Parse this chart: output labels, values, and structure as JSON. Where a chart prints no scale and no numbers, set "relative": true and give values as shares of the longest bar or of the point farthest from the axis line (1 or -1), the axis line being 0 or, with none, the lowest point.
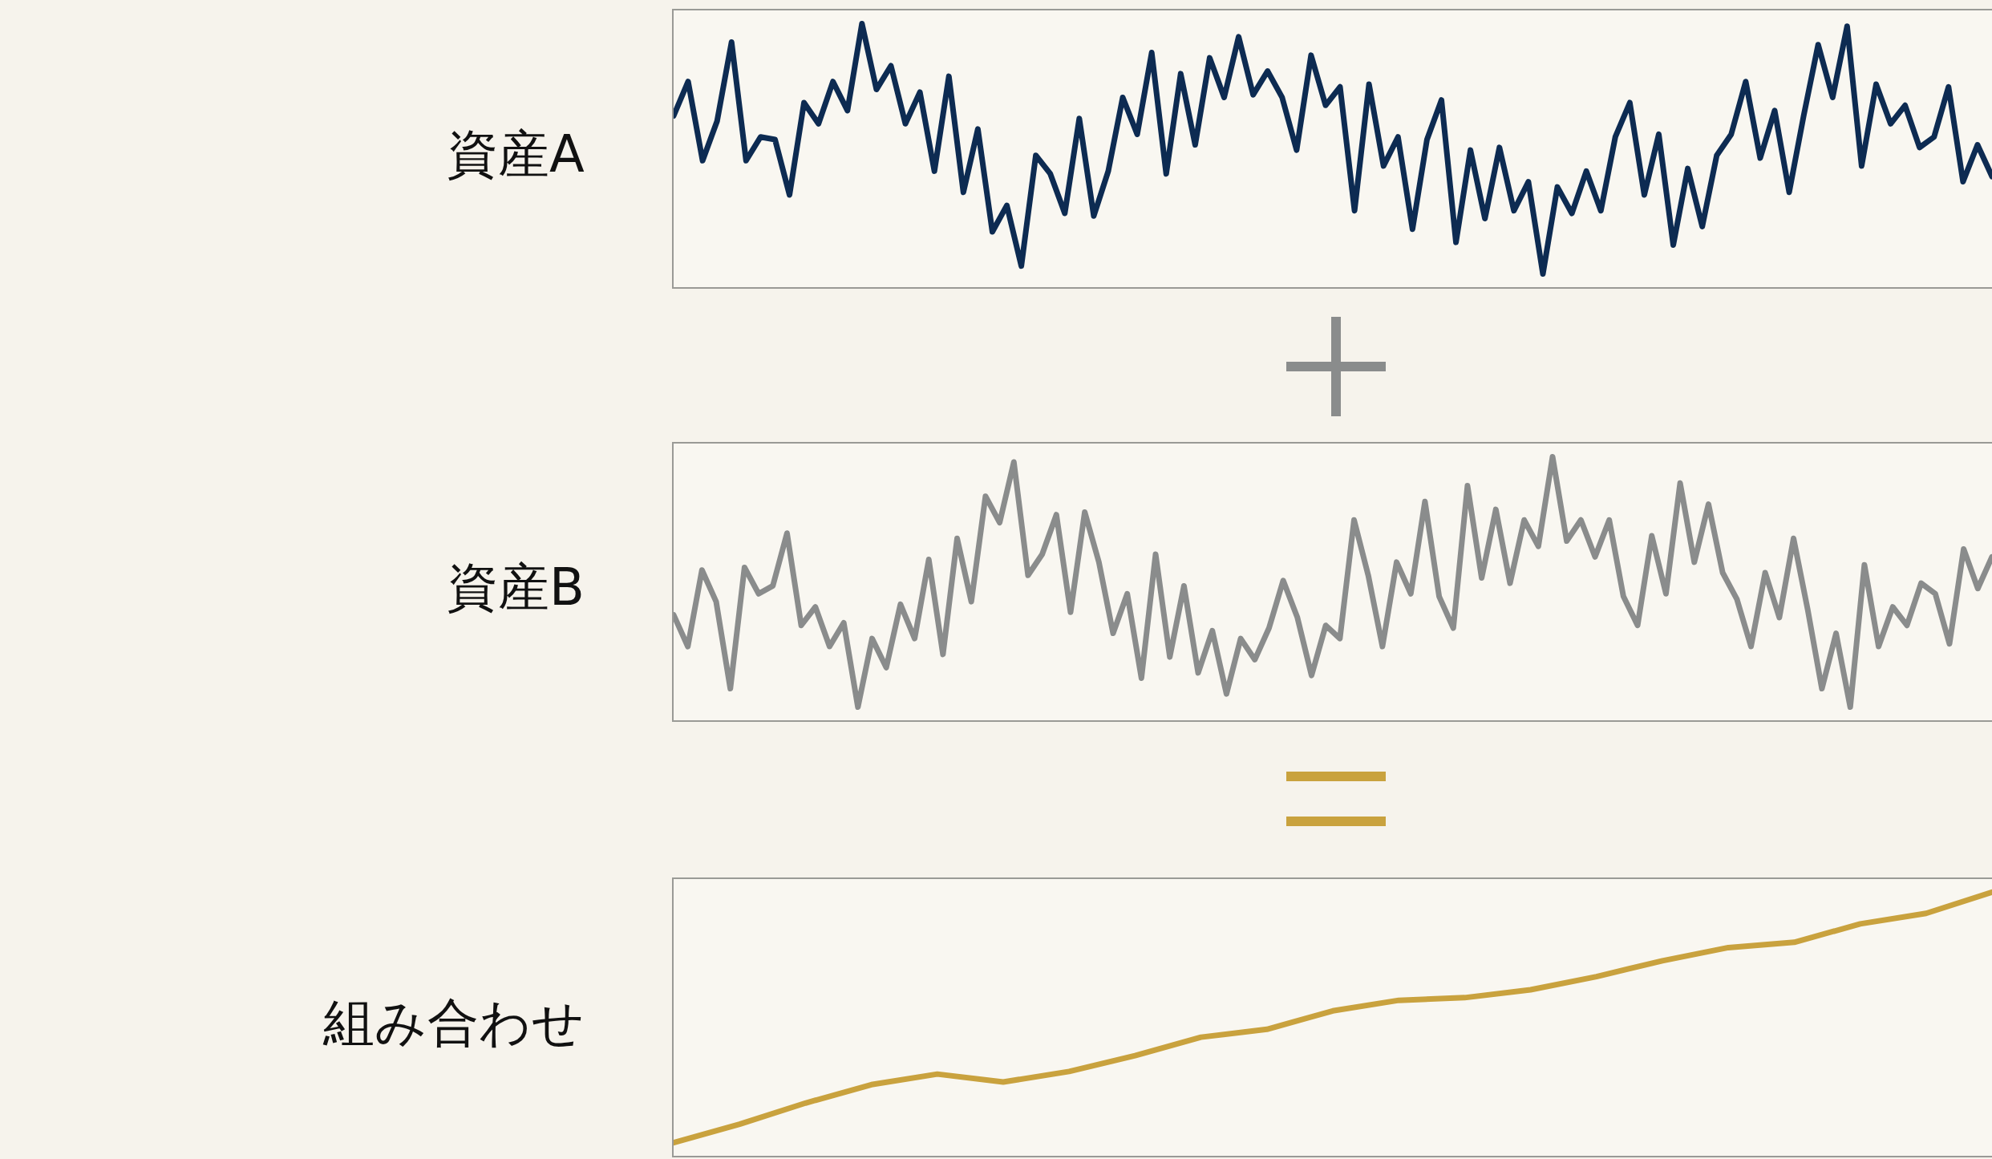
{
  "chart_data": [
    {
      "type": "line",
      "relative": true,
      "ylabel": "資産A",
      "categories": [
        null,
        null,
        null,
        null,
        null,
        null,
        null,
        null,
        null,
        null,
        null,
        null,
        null,
        null,
        null,
        null,
        null,
        null,
        null,
        null,
        null,
        null,
        null,
        null,
        null,
        null,
        null,
        null,
        null,
        null,
        null,
        null,
        null,
        null,
        null,
        null,
        null,
        null,
        null,
        null,
        null,
        null,
        null,
        null,
        null,
        null,
        null,
        null,
        null,
        null,
        null,
        null,
        null,
        null,
        null,
        null,
        null,
        null,
        null,
        null,
        null,
        null,
        null,
        null,
        null,
        null,
        null,
        null,
        null,
        null,
        null,
        null,
        null,
        null,
        null,
        null,
        null,
        null,
        null,
        null,
        null,
        null,
        null,
        null,
        null,
        null,
        null,
        null,
        null,
        null,
        null,
        null
      ],
      "series": [
        {
          "color": "#0d2b52",
          "values": [
            0.65,
            0.78,
            0.48,
            0.63,
            0.93,
            0.48,
            0.57,
            0.56,
            0.35,
            0.7,
            0.62,
            0.78,
            0.67,
            1.0,
            0.75,
            0.84,
            0.62,
            0.74,
            0.44,
            0.8,
            0.36,
            0.6,
            0.21,
            0.31,
            0.08,
            0.5,
            0.43,
            0.28,
            0.64,
            0.27,
            0.44,
            0.72,
            0.58,
            0.89,
            0.43,
            0.81,
            0.54,
            0.87,
            0.72,
            0.95,
            0.73,
            0.82,
            0.72,
            0.52,
            0.88,
            0.69,
            0.76,
            0.29,
            0.77,
            0.46,
            0.57,
            0.22,
            0.56,
            0.71,
            0.17,
            0.52,
            0.26,
            0.53,
            0.29,
            0.4,
            0.05,
            0.38,
            0.28,
            0.44,
            0.29,
            0.57,
            0.7,
            0.35,
            0.58,
            0.16,
            0.45,
            0.23,
            0.5,
            0.58,
            0.78,
            0.49,
            0.67,
            0.36,
            0.65,
            0.92,
            0.72,
            0.99,
            0.46,
            0.77,
            0.62,
            0.69,
            0.53,
            0.57,
            0.76,
            0.4,
            0.54,
            0.42
          ]
        }
      ]
    },
    {
      "type": "line",
      "relative": true,
      "ylabel": "資産B",
      "categories": [
        null,
        null,
        null,
        null,
        null,
        null,
        null,
        null,
        null,
        null,
        null,
        null,
        null,
        null,
        null,
        null,
        null,
        null,
        null,
        null,
        null,
        null,
        null,
        null,
        null,
        null,
        null,
        null,
        null,
        null,
        null,
        null,
        null,
        null,
        null,
        null,
        null,
        null,
        null,
        null,
        null,
        null,
        null,
        null,
        null,
        null,
        null,
        null,
        null,
        null,
        null,
        null,
        null,
        null,
        null,
        null,
        null,
        null,
        null,
        null,
        null,
        null,
        null,
        null,
        null,
        null,
        null,
        null,
        null,
        null,
        null,
        null,
        null,
        null,
        null,
        null,
        null,
        null,
        null,
        null,
        null,
        null,
        null,
        null,
        null,
        null,
        null,
        null,
        null,
        null,
        null,
        null,
        null,
        null
      ],
      "series": [
        {
          "color": "#8a8c8c",
          "values": [
            0.4,
            0.28,
            0.57,
            0.45,
            0.12,
            0.58,
            0.48,
            0.51,
            0.71,
            0.36,
            0.43,
            0.28,
            0.37,
            0.05,
            0.31,
            0.2,
            0.44,
            0.31,
            0.61,
            0.25,
            0.69,
            0.45,
            0.85,
            0.75,
            0.98,
            0.55,
            0.63,
            0.78,
            0.41,
            0.79,
            0.6,
            0.33,
            0.48,
            0.16,
            0.63,
            0.24,
            0.51,
            0.18,
            0.34,
            0.1,
            0.31,
            0.23,
            0.35,
            0.53,
            0.39,
            0.17,
            0.36,
            0.31,
            0.76,
            0.55,
            0.28,
            0.6,
            0.48,
            0.83,
            0.47,
            0.35,
            0.89,
            0.54,
            0.8,
            0.52,
            0.76,
            0.66,
            1.0,
            0.68,
            0.76,
            0.62,
            0.76,
            0.47,
            0.36,
            0.7,
            0.48,
            0.9,
            0.6,
            0.82,
            0.56,
            0.46,
            0.28,
            0.56,
            0.39,
            0.69,
            0.42,
            0.12,
            0.33,
            0.05,
            0.59,
            0.28,
            0.43,
            0.36,
            0.52,
            0.48,
            0.29,
            0.65,
            0.5,
            0.62
          ]
        }
      ]
    },
    {
      "type": "line",
      "relative": true,
      "ylabel": "組み合わせ",
      "categories": [
        null,
        null,
        null,
        null,
        null,
        null,
        null,
        null,
        null,
        null,
        null,
        null,
        null,
        null,
        null,
        null,
        null,
        null,
        null,
        null,
        null
      ],
      "series": [
        {
          "color": "#c9a23e",
          "values": [
            0.05,
            0.12,
            0.2,
            0.27,
            0.31,
            0.28,
            0.32,
            0.38,
            0.45,
            0.48,
            0.55,
            0.59,
            0.6,
            0.63,
            0.68,
            0.74,
            0.79,
            0.81,
            0.88,
            0.92,
            1.0
          ]
        }
      ]
    }
  ]
}
